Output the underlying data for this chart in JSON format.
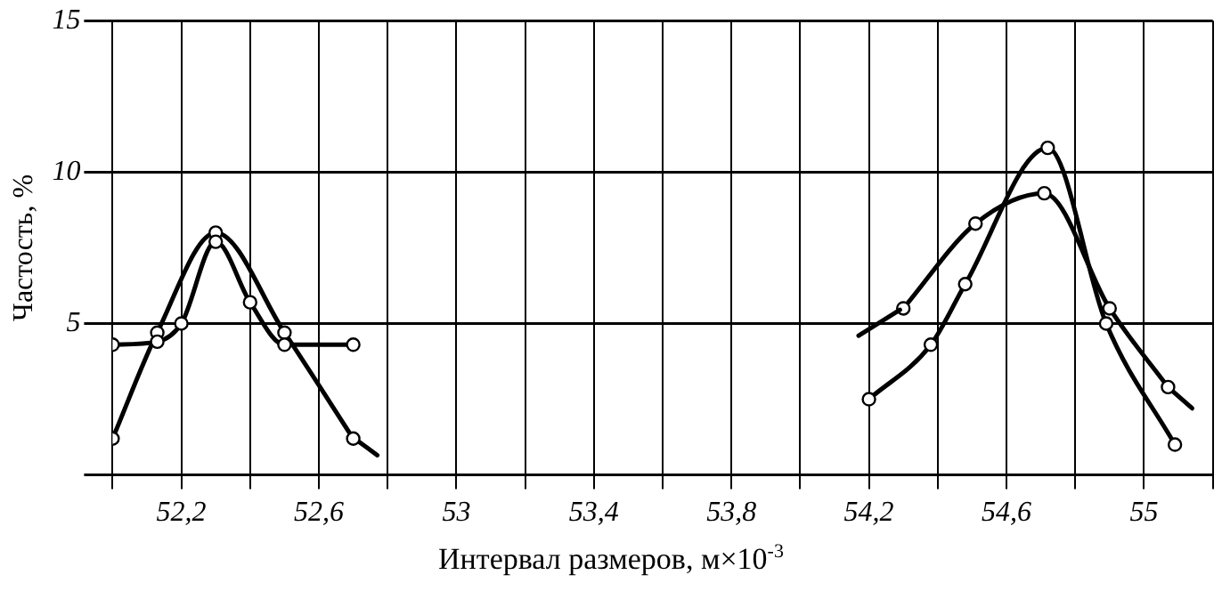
{
  "chart_data": {
    "type": "line",
    "xlabel": "Интервал размеров, м×10$^{-3}$",
    "ylabel": "Частость, %",
    "xlim": [
      52,
      55.2
    ],
    "xticks": [
      {
        "value": 52,
        "label": null
      },
      {
        "value": 52.2,
        "label": "52,2"
      },
      {
        "value": 52.4,
        "label": null
      },
      {
        "value": 52.6,
        "label": "52,6"
      },
      {
        "value": 52.8,
        "label": null
      },
      {
        "value": 53,
        "label": "53"
      },
      {
        "value": 53.2,
        "label": null
      },
      {
        "value": 53.4,
        "label": "53,4"
      },
      {
        "value": 53.6,
        "label": null
      },
      {
        "value": 53.8,
        "label": "53,8"
      },
      {
        "value": 54,
        "label": null
      },
      {
        "value": 54.2,
        "label": "54,2"
      },
      {
        "value": 54.4,
        "label": null
      },
      {
        "value": 54.6,
        "label": "54,6"
      },
      {
        "value": 54.8,
        "label": null
      },
      {
        "value": 55,
        "label": "55"
      },
      {
        "value": 55.2,
        "label": null
      }
    ],
    "ylim": [
      0,
      15
    ],
    "yticks": [
      {
        "value": 0,
        "label": null
      },
      5,
      10,
      15
    ],
    "grid": true,
    "legend": false,
    "marker": "circle",
    "line_style": "solid",
    "series": [
      {
        "color": "#000000",
        "x": [
          52.0,
          52.13,
          52.2,
          52.3,
          52.4,
          52.5,
          52.7
        ],
        "values": [
          4.3,
          4.4,
          5.0,
          7.7,
          5.7,
          4.3,
          4.3
        ]
      },
      {
        "color": "#000000",
        "x": [
          52.0,
          52.13,
          52.3,
          52.5,
          52.7
        ],
        "values": [
          1.2,
          4.7,
          8.0,
          4.7,
          1.2
        ]
      },
      {
        "color": "#000000",
        "marker": "none",
        "x": [
          52.71,
          52.77
        ],
        "values": [
          1.15,
          0.65
        ]
      },
      {
        "color": "#000000",
        "marker": "none",
        "x": [
          54.17,
          54.29
        ],
        "values": [
          4.6,
          5.45
        ]
      },
      {
        "color": "#000000",
        "x": [
          54.3,
          54.51,
          54.71,
          54.9,
          55.07
        ],
        "values": [
          5.5,
          8.3,
          9.3,
          5.5,
          2.9
        ]
      },
      {
        "color": "#000000",
        "marker": "none",
        "x": [
          55.08,
          55.14
        ],
        "values": [
          2.8,
          2.2
        ]
      },
      {
        "color": "#000000",
        "x": [
          54.2,
          54.38,
          54.48,
          54.72,
          54.89,
          55.09
        ],
        "values": [
          2.5,
          4.3,
          6.3,
          10.8,
          5.0,
          1.0
        ]
      }
    ]
  }
}
